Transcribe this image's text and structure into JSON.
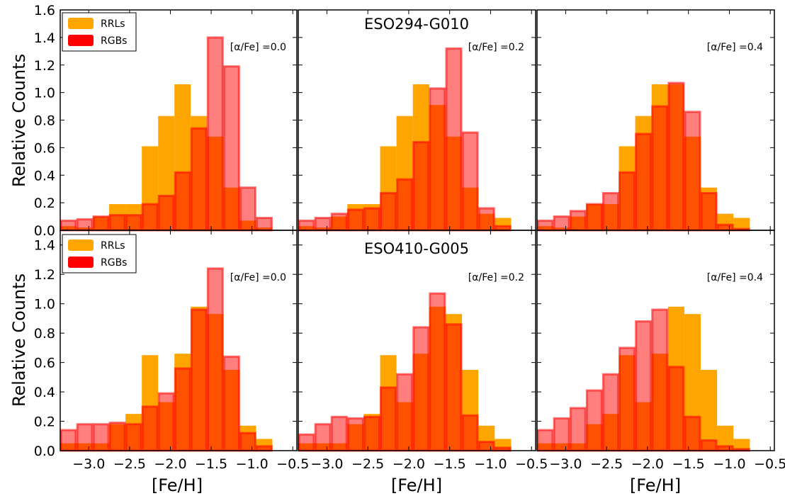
{
  "colors": {
    "rrl": "#FFA500",
    "rgb": "#FF0000",
    "rgb_edge": "#FF0000",
    "axes": "#000000"
  },
  "chart_data": {
    "type": "bar",
    "xlabel": "[Fe/H]",
    "ylabel": "Relative Counts",
    "xlim": [
      -3.35,
      -0.45
    ],
    "bin_edges": [
      -3.35,
      -3.15,
      -2.95,
      -2.75,
      -2.55,
      -2.35,
      -2.15,
      -1.95,
      -1.75,
      -1.55,
      -1.35,
      -1.15,
      -0.95,
      -0.75,
      -0.55
    ],
    "x_tick_values": [
      -3.0,
      -2.5,
      -2.0,
      -1.5,
      -1.0,
      -0.5
    ],
    "x_tick_labels": [
      "−3.0",
      "−2.5",
      "−2.0",
      "−1.5",
      "−1.0",
      "−0.5"
    ],
    "legend": {
      "position": "top-left",
      "entries": [
        "RRLs",
        "RGBs"
      ]
    },
    "rows": [
      {
        "title": "ESO294-G010",
        "ylim": [
          0,
          1.6
        ],
        "y_ticks": [
          "0.0",
          "0.2",
          "0.4",
          "0.6",
          "0.8",
          "1.0",
          "1.2",
          "1.4",
          "1.6"
        ],
        "panels": [
          {
            "annotation": "[α/Fe] =0.0",
            "rrl": [
              0.03,
              0.02,
              0.1,
              0.19,
              0.19,
              0.61,
              0.83,
              1.06,
              0.83,
              0.68,
              0.31,
              0.07,
              0.02,
              0.0
            ],
            "rgb": [
              0.07,
              0.08,
              0.1,
              0.11,
              0.11,
              0.19,
              0.25,
              0.42,
              0.74,
              1.4,
              1.19,
              0.31,
              0.09,
              0.0
            ]
          },
          {
            "annotation": "[α/Fe] =0.2",
            "rrl": [
              0.03,
              0.02,
              0.1,
              0.19,
              0.19,
              0.61,
              0.83,
              1.06,
              0.91,
              0.68,
              0.31,
              0.12,
              0.09,
              0.0
            ],
            "rgb": [
              0.07,
              0.09,
              0.12,
              0.15,
              0.16,
              0.27,
              0.37,
              0.64,
              1.03,
              1.32,
              0.71,
              0.16,
              0.03,
              0.0
            ]
          },
          {
            "annotation": "[α/Fe] =0.4",
            "rrl": [
              0.03,
              0.02,
              0.1,
              0.19,
              0.19,
              0.61,
              0.83,
              1.06,
              1.06,
              0.68,
              0.31,
              0.12,
              0.09,
              0.0
            ],
            "rgb": [
              0.07,
              0.1,
              0.14,
              0.19,
              0.27,
              0.42,
              0.7,
              0.9,
              1.07,
              0.86,
              0.27,
              0.04,
              0.01,
              0.0
            ]
          }
        ]
      },
      {
        "title": "ESO410-G005",
        "ylim": [
          0,
          1.5
        ],
        "y_ticks": [
          "0.0",
          "0.2",
          "0.4",
          "0.6",
          "0.8",
          "1.0",
          "1.2",
          "1.4"
        ],
        "panels": [
          {
            "annotation": "[α/Fe] =0.0",
            "rrl": [
              0.05,
              0.05,
              0.05,
              0.18,
              0.25,
              0.65,
              0.33,
              0.66,
              0.98,
              0.93,
              0.55,
              0.17,
              0.08,
              0.0
            ],
            "rgb": [
              0.14,
              0.18,
              0.18,
              0.19,
              0.18,
              0.3,
              0.39,
              0.56,
              0.96,
              1.24,
              0.64,
              0.12,
              0.03,
              0.0
            ]
          },
          {
            "annotation": "[α/Fe] =0.2",
            "rrl": [
              0.05,
              0.05,
              0.05,
              0.18,
              0.25,
              0.65,
              0.33,
              0.66,
              0.98,
              0.93,
              0.55,
              0.17,
              0.08,
              0.0
            ],
            "rgb": [
              0.11,
              0.18,
              0.23,
              0.22,
              0.23,
              0.43,
              0.52,
              0.84,
              1.07,
              0.86,
              0.24,
              0.06,
              0.02,
              0.0
            ]
          },
          {
            "annotation": "[α/Fe] =0.4",
            "rrl": [
              0.05,
              0.05,
              0.05,
              0.18,
              0.25,
              0.65,
              0.33,
              0.66,
              0.98,
              0.93,
              0.55,
              0.17,
              0.08,
              0.0
            ],
            "rgb": [
              0.14,
              0.22,
              0.29,
              0.41,
              0.52,
              0.7,
              0.88,
              0.96,
              0.57,
              0.23,
              0.07,
              0.03,
              0.01,
              0.0
            ]
          }
        ]
      }
    ]
  }
}
